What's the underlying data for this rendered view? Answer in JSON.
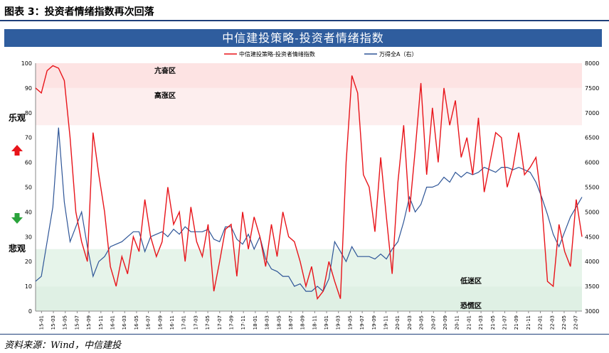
{
  "figure_title": "图表 3：投资者情绪指数再次回落",
  "banner_title": "中信建投策略-投资者情绪指数",
  "source": "资料来源：Wind，中信建投",
  "side_labels": {
    "optimistic": "乐观",
    "pessimistic": "悲观"
  },
  "colors": {
    "sentiment": "#e8141a",
    "index": "#2e5597",
    "up_arrow": "#e8141a",
    "down_arrow": "#2aa33b",
    "zone_high": "#fde3e3",
    "zone_low": "#e6f4ea"
  },
  "chart_data": {
    "type": "line",
    "legend": [
      "中信建投策略-投资者情绪指数",
      "万得全A（右）"
    ],
    "legend_position": "top-center",
    "x_ticks": [
      "15-01",
      "15-03",
      "15-05",
      "15-07",
      "15-09",
      "15-11",
      "16-01",
      "16-03",
      "16-05",
      "16-07",
      "16-09",
      "16-11",
      "17-01",
      "17-03",
      "17-05",
      "17-07",
      "17-09",
      "17-11",
      "18-01",
      "18-03",
      "18-05",
      "18-07",
      "18-09",
      "18-11",
      "19-01",
      "19-03",
      "19-05",
      "19-07",
      "19-09",
      "19-11",
      "20-01",
      "20-03",
      "20-05",
      "20-07",
      "20-09",
      "20-11",
      "21-01",
      "21-03",
      "21-05",
      "21-07",
      "21-09",
      "21-11",
      "22-01",
      "22-03",
      "22-05",
      "22-07"
    ],
    "y_left": {
      "min": 0,
      "max": 100,
      "ticks": [
        0,
        10,
        20,
        30,
        40,
        50,
        60,
        70,
        80,
        90,
        100
      ]
    },
    "y_right": {
      "min": 3000,
      "max": 8000,
      "ticks": [
        3000,
        3500,
        4000,
        4500,
        5000,
        5500,
        6000,
        6500,
        7000,
        7500,
        8000
      ]
    },
    "zones": [
      {
        "label": "亢奋区",
        "from": 90,
        "to": 100
      },
      {
        "label": "高涨区",
        "from": 75,
        "to": 90
      },
      {
        "label": "低迷区",
        "from": 10,
        "to": 25
      },
      {
        "label": "恐慌区",
        "from": 0,
        "to": 10
      }
    ],
    "series": [
      {
        "name": "中信建投策略-投资者情绪指数",
        "axis": "left",
        "values": [
          90,
          88,
          97,
          99,
          98,
          93,
          70,
          40,
          28,
          20,
          72,
          55,
          40,
          18,
          10,
          22,
          15,
          30,
          24,
          45,
          30,
          22,
          28,
          50,
          35,
          40,
          20,
          42,
          28,
          22,
          35,
          8,
          20,
          33,
          35,
          14,
          40,
          25,
          38,
          30,
          18,
          35,
          22,
          40,
          30,
          28,
          20,
          10,
          18,
          5,
          8,
          20,
          12,
          5,
          60,
          95,
          88,
          55,
          50,
          32,
          62,
          38,
          15,
          52,
          75,
          40,
          65,
          92,
          55,
          82,
          60,
          90,
          75,
          85,
          62,
          70,
          55,
          78,
          48,
          60,
          72,
          70,
          50,
          58,
          72,
          55,
          58,
          62,
          44,
          12,
          10,
          35,
          24,
          18,
          45,
          30
        ]
      },
      {
        "name": "万得全A（右）",
        "axis": "right",
        "values": [
          3600,
          3700,
          4400,
          5100,
          6700,
          5200,
          4400,
          4700,
          5000,
          4300,
          3700,
          4000,
          4100,
          4300,
          4350,
          4400,
          4500,
          4600,
          4600,
          4200,
          4500,
          4550,
          4600,
          4500,
          4650,
          4550,
          4700,
          4600,
          4600,
          4600,
          4650,
          4450,
          4400,
          4700,
          4700,
          4450,
          4350,
          4550,
          4250,
          4500,
          4050,
          3850,
          3800,
          3700,
          3700,
          3500,
          3550,
          3400,
          3400,
          3500,
          3400,
          3650,
          4400,
          4200,
          4000,
          4300,
          4100,
          4100,
          4100,
          4050,
          4150,
          4050,
          4250,
          4400,
          4800,
          5300,
          5000,
          5150,
          5500,
          5500,
          5550,
          5700,
          5600,
          5800,
          5700,
          5800,
          5750,
          5800,
          5900,
          5850,
          5800,
          5900,
          5900,
          5850,
          5900,
          5850,
          5800,
          5600,
          5300,
          4950,
          4550,
          4300,
          4600,
          4900,
          5100,
          5300
        ]
      }
    ]
  }
}
